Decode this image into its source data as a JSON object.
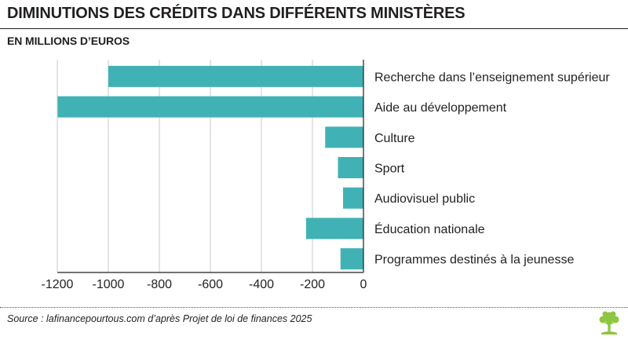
{
  "header": {
    "title": "DIMINUTIONS DES CRÉDITS DANS DIFFÉRENTS MINISTÈRES",
    "subtitle": "EN MILLIONS D’EUROS"
  },
  "footer": {
    "source": "Source : lafinancepourtous.com d’après Projet de loi de finances 2025"
  },
  "logo": {
    "icon": "tree-icon",
    "color": "#8dc63f"
  },
  "chart_data": {
    "type": "bar",
    "orientation": "horizontal",
    "categories": [
      "Recherche dans l’enseignement supérieur",
      "Aide au développement",
      "Culture",
      "Sport",
      "Audiovisuel public",
      "Éducation nationale",
      "Programmes destinés à la jeunesse"
    ],
    "values": [
      -1000,
      -1200,
      -150,
      -100,
      -80,
      -225,
      -90
    ],
    "xlim": [
      -1200,
      0
    ],
    "xticks": [
      -1200,
      -1000,
      -800,
      -600,
      -400,
      -200,
      0
    ],
    "xtick_labels": [
      "-1200",
      "-1000",
      "-800",
      "-600",
      "-400",
      "-200",
      "0"
    ],
    "grid": true,
    "bar_color": "#40b2b5",
    "grid_color": "#c8c8c8"
  }
}
